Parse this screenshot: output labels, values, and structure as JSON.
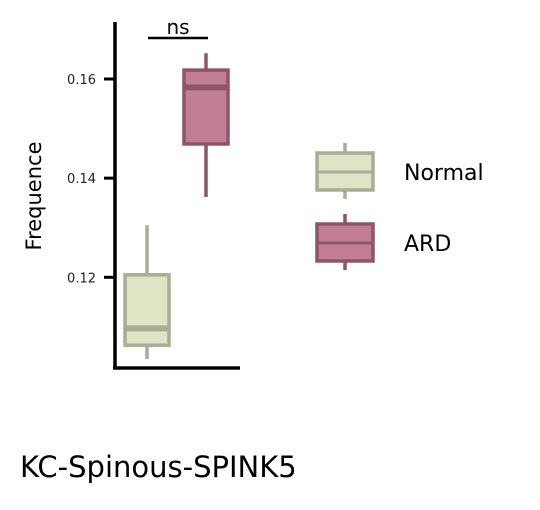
{
  "chart_data": {
    "type": "box",
    "ylabel": "Frequence",
    "ylim": [
      0.1015,
      0.1715
    ],
    "yticks": [
      0.12,
      0.14,
      0.16
    ],
    "ytick_labels": [
      "0.12",
      "0.14",
      "0.16"
    ],
    "series": [
      {
        "name": "Normal",
        "color": "#dde5c4",
        "edge_color": "#a8ad96",
        "whisker_low": 0.1035,
        "q1": 0.1063,
        "median": 0.1097,
        "q3": 0.1205,
        "whisker_high": 0.1305
      },
      {
        "name": "ARD",
        "color": "#c27e94",
        "edge_color": "#8e5567",
        "whisker_low": 0.1362,
        "q1": 0.1469,
        "median": 0.1583,
        "q3": 0.1618,
        "whisker_high": 0.1652
      }
    ],
    "significance": {
      "label": "ns"
    },
    "legend_position": "right"
  },
  "caption": "KC-Spinous-SPINK5"
}
